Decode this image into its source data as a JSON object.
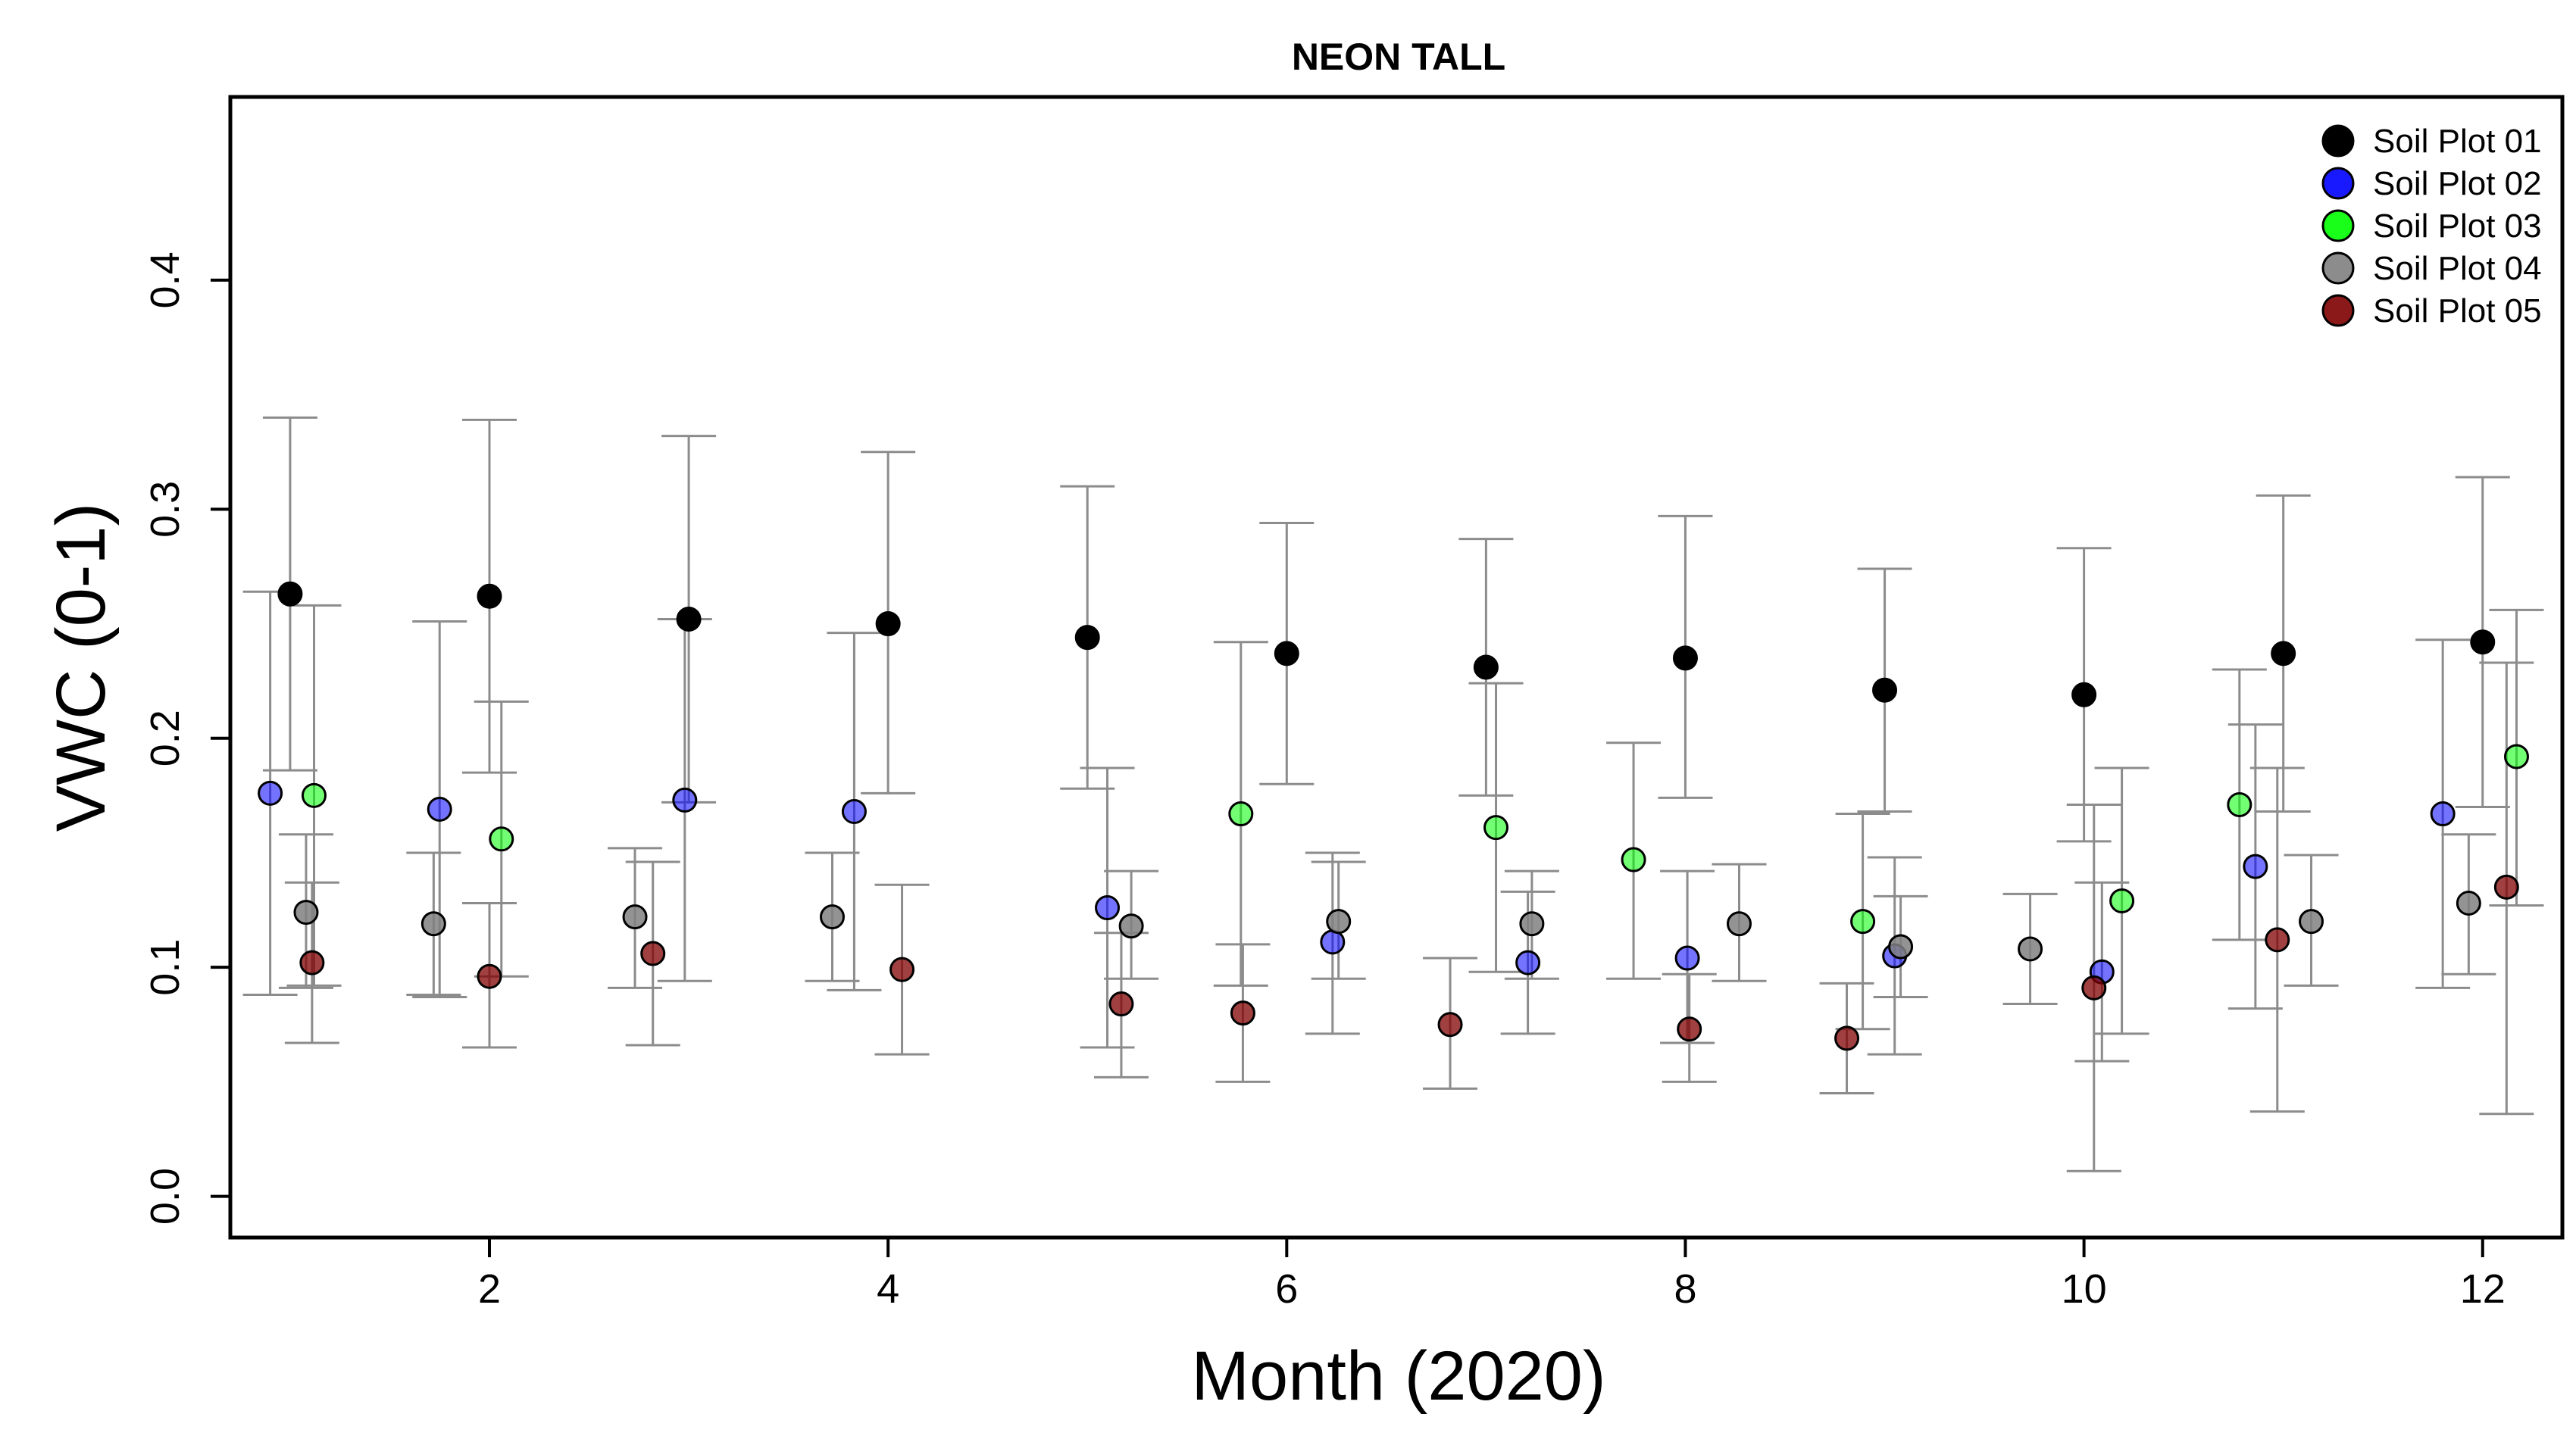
{
  "chart_data": {
    "type": "scatter",
    "title": "NEON TALL",
    "xlabel": "Month (2020)",
    "ylabel": "VWC (0-1)",
    "xlim": [
      0.7,
      12.4
    ],
    "ylim": [
      -0.018,
      0.48
    ],
    "xticks": [
      2,
      4,
      6,
      8,
      10,
      12
    ],
    "yticks": [
      0.0,
      0.1,
      0.2,
      0.3,
      0.4
    ],
    "xtick_labels": [
      "2",
      "4",
      "6",
      "8",
      "10",
      "12"
    ],
    "ytick_labels": [
      "0.0",
      "0.1",
      "0.2",
      "0.3",
      "0.4"
    ],
    "error_bars": true,
    "error_bar_color": "#8c8c8c",
    "legend_position": "top-right",
    "series": [
      {
        "name": "Soil Plot 01",
        "color": "#000000",
        "opacity": 1.0,
        "points": [
          {
            "x": 1.0,
            "y": 0.263,
            "lo": 0.186,
            "hi": 0.34
          },
          {
            "x": 2.0,
            "y": 0.262,
            "lo": 0.185,
            "hi": 0.339
          },
          {
            "x": 3.0,
            "y": 0.252,
            "lo": 0.172,
            "hi": 0.332
          },
          {
            "x": 4.0,
            "y": 0.25,
            "lo": 0.176,
            "hi": 0.325
          },
          {
            "x": 5.0,
            "y": 0.244,
            "lo": 0.178,
            "hi": 0.31
          },
          {
            "x": 6.0,
            "y": 0.237,
            "lo": 0.18,
            "hi": 0.294
          },
          {
            "x": 7.0,
            "y": 0.231,
            "lo": 0.175,
            "hi": 0.287
          },
          {
            "x": 8.0,
            "y": 0.235,
            "lo": 0.174,
            "hi": 0.297
          },
          {
            "x": 9.0,
            "y": 0.221,
            "lo": 0.168,
            "hi": 0.274
          },
          {
            "x": 10.0,
            "y": 0.219,
            "lo": 0.155,
            "hi": 0.283
          },
          {
            "x": 11.0,
            "y": 0.237,
            "lo": 0.168,
            "hi": 0.306
          },
          {
            "x": 12.0,
            "y": 0.242,
            "lo": 0.17,
            "hi": 0.314
          }
        ]
      },
      {
        "name": "Soil Plot 02",
        "color": "#0000ff",
        "opacity": 0.55,
        "points": [
          {
            "x": 0.9,
            "y": 0.176,
            "lo": 0.088,
            "hi": 0.264
          },
          {
            "x": 1.75,
            "y": 0.169,
            "lo": 0.087,
            "hi": 0.251
          },
          {
            "x": 2.98,
            "y": 0.173,
            "lo": 0.094,
            "hi": 0.252
          },
          {
            "x": 3.83,
            "y": 0.168,
            "lo": 0.09,
            "hi": 0.246
          },
          {
            "x": 5.1,
            "y": 0.126,
            "lo": 0.065,
            "hi": 0.187
          },
          {
            "x": 6.23,
            "y": 0.111,
            "lo": 0.071,
            "hi": 0.15
          },
          {
            "x": 7.21,
            "y": 0.102,
            "lo": 0.071,
            "hi": 0.133
          },
          {
            "x": 8.01,
            "y": 0.104,
            "lo": 0.067,
            "hi": 0.142
          },
          {
            "x": 9.05,
            "y": 0.105,
            "lo": 0.062,
            "hi": 0.148
          },
          {
            "x": 10.09,
            "y": 0.098,
            "lo": 0.059,
            "hi": 0.137
          },
          {
            "x": 10.86,
            "y": 0.144,
            "lo": 0.082,
            "hi": 0.206
          },
          {
            "x": 11.8,
            "y": 0.167,
            "lo": 0.091,
            "hi": 0.243
          }
        ]
      },
      {
        "name": "Soil Plot 03",
        "color": "#00ff00",
        "opacity": 0.55,
        "points": [
          {
            "x": 1.12,
            "y": 0.175,
            "lo": 0.092,
            "hi": 0.258
          },
          {
            "x": 2.06,
            "y": 0.156,
            "lo": 0.096,
            "hi": 0.216
          },
          {
            "x": 5.77,
            "y": 0.167,
            "lo": 0.092,
            "hi": 0.242
          },
          {
            "x": 7.05,
            "y": 0.161,
            "lo": 0.098,
            "hi": 0.224
          },
          {
            "x": 7.74,
            "y": 0.147,
            "lo": 0.095,
            "hi": 0.198
          },
          {
            "x": 8.89,
            "y": 0.12,
            "lo": 0.073,
            "hi": 0.167
          },
          {
            "x": 10.19,
            "y": 0.129,
            "lo": 0.071,
            "hi": 0.187
          },
          {
            "x": 10.78,
            "y": 0.171,
            "lo": 0.112,
            "hi": 0.23
          },
          {
            "x": 12.17,
            "y": 0.192,
            "lo": 0.127,
            "hi": 0.256
          }
        ]
      },
      {
        "name": "Soil Plot 04",
        "color": "#808080",
        "opacity": 0.85,
        "points": [
          {
            "x": 1.08,
            "y": 0.124,
            "lo": 0.091,
            "hi": 0.158
          },
          {
            "x": 1.72,
            "y": 0.119,
            "lo": 0.088,
            "hi": 0.15
          },
          {
            "x": 2.73,
            "y": 0.122,
            "lo": 0.091,
            "hi": 0.152
          },
          {
            "x": 3.72,
            "y": 0.122,
            "lo": 0.094,
            "hi": 0.15
          },
          {
            "x": 5.22,
            "y": 0.118,
            "lo": 0.095,
            "hi": 0.142
          },
          {
            "x": 6.26,
            "y": 0.12,
            "lo": 0.095,
            "hi": 0.146
          },
          {
            "x": 7.23,
            "y": 0.119,
            "lo": 0.095,
            "hi": 0.142
          },
          {
            "x": 8.27,
            "y": 0.119,
            "lo": 0.094,
            "hi": 0.145
          },
          {
            "x": 9.08,
            "y": 0.109,
            "lo": 0.087,
            "hi": 0.131
          },
          {
            "x": 9.73,
            "y": 0.108,
            "lo": 0.084,
            "hi": 0.132
          },
          {
            "x": 11.14,
            "y": 0.12,
            "lo": 0.092,
            "hi": 0.149
          },
          {
            "x": 11.93,
            "y": 0.128,
            "lo": 0.097,
            "hi": 0.158
          }
        ]
      },
      {
        "name": "Soil Plot 05",
        "color": "#800000",
        "opacity": 0.75,
        "points": [
          {
            "x": 1.11,
            "y": 0.102,
            "lo": 0.067,
            "hi": 0.137
          },
          {
            "x": 2.0,
            "y": 0.096,
            "lo": 0.065,
            "hi": 0.128
          },
          {
            "x": 2.82,
            "y": 0.106,
            "lo": 0.066,
            "hi": 0.146
          },
          {
            "x": 4.07,
            "y": 0.099,
            "lo": 0.062,
            "hi": 0.136
          },
          {
            "x": 5.17,
            "y": 0.084,
            "lo": 0.052,
            "hi": 0.115
          },
          {
            "x": 5.78,
            "y": 0.08,
            "lo": 0.05,
            "hi": 0.11
          },
          {
            "x": 6.82,
            "y": 0.075,
            "lo": 0.047,
            "hi": 0.104
          },
          {
            "x": 8.02,
            "y": 0.073,
            "lo": 0.05,
            "hi": 0.097
          },
          {
            "x": 8.81,
            "y": 0.069,
            "lo": 0.045,
            "hi": 0.093
          },
          {
            "x": 10.05,
            "y": 0.091,
            "lo": 0.011,
            "hi": 0.171
          },
          {
            "x": 10.97,
            "y": 0.112,
            "lo": 0.037,
            "hi": 0.187
          },
          {
            "x": 12.12,
            "y": 0.135,
            "lo": 0.036,
            "hi": 0.233
          }
        ]
      }
    ]
  }
}
